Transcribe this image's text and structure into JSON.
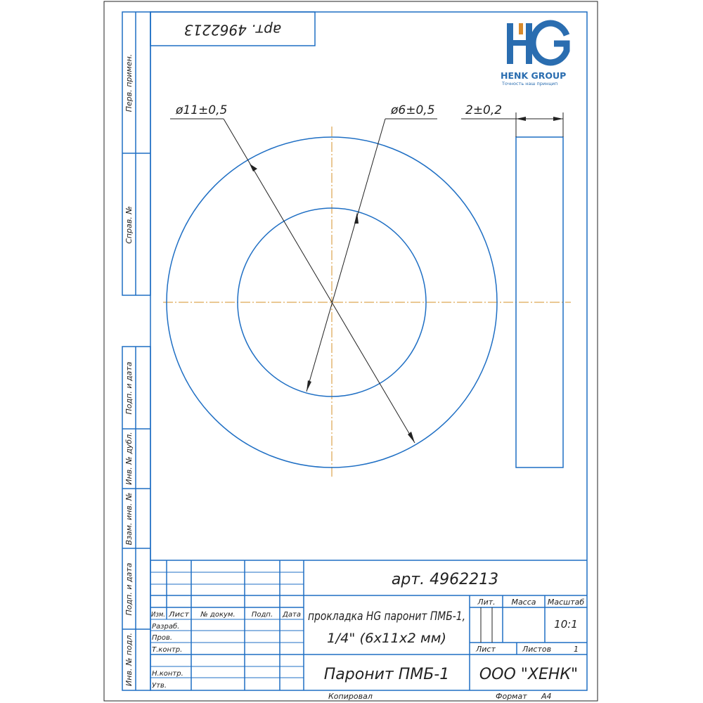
{
  "logo": {
    "mark": "HG",
    "name": "HENK GROUP",
    "tagline": "Точность наш принцип",
    "colors": {
      "blue": "#2a6db0",
      "orange": "#d98a2b"
    }
  },
  "colors": {
    "frame": "#1f6fc4",
    "centerline": "#d4922a"
  },
  "top_box": {
    "article": "арт. 4962213"
  },
  "side_strips": [
    "Перв. примен.",
    "Справ. №",
    "Подп. и дата",
    "Инв. № дубл.",
    "Взам. инв. №",
    "Подп. и дата",
    "Инв. № подл."
  ],
  "dimensions": {
    "outer_diameter": "ø11±0,5",
    "inner_diameter": "ø6±0,5",
    "thickness": "2±0,2"
  },
  "title_block": {
    "article": "арт. 4962213",
    "columns": [
      "Изм.",
      "Лист",
      "№ докум.",
      "Подп.",
      "Дата"
    ],
    "roles": [
      "Разраб.",
      "Пров.",
      "Т.контр.",
      "",
      "Н.контр.",
      "Утв."
    ],
    "name_line1": "прокладка HG паронит ПМБ-1,",
    "name_line2": "1/4\" (6x11x2 мм)",
    "lit_label": "Лит.",
    "mass_label": "Масса",
    "scale_label": "Масштаб",
    "scale_value": "10:1",
    "sheet_label": "Лист",
    "sheets_label": "Листов",
    "sheets_value": "1",
    "material": "Паронит ПМБ-1",
    "company": "ООО \"ХЕНК\"",
    "copied_label": "Копировал",
    "format_label": "Формат",
    "format_value": "А4"
  }
}
